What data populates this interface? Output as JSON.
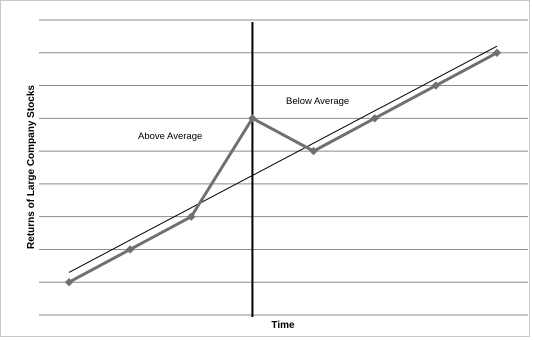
{
  "chart_data": {
    "type": "line",
    "title": "",
    "xlabel": "Time",
    "ylabel": "Returns of Large Company Stocks",
    "x": [
      1,
      2,
      3,
      4,
      5,
      6,
      7,
      8
    ],
    "ylim": [
      0,
      9
    ],
    "grid_lines_y": [
      1,
      2,
      3,
      4,
      5,
      6,
      7,
      8,
      9
    ],
    "series": [
      {
        "values": [
          1,
          2,
          3,
          6,
          5,
          6,
          7,
          8
        ],
        "color": "#707070",
        "marker": "diamond"
      }
    ],
    "trendline": {
      "x_range": [
        1,
        8
      ],
      "y_range": [
        1.3,
        8.2
      ],
      "color": "#000000"
    },
    "vertical_divider": {
      "x": 4,
      "color": "#000000"
    },
    "annotations": [
      {
        "text": "Above Average"
      },
      {
        "text": "Below Average"
      }
    ],
    "grid": true,
    "legend": "none"
  }
}
